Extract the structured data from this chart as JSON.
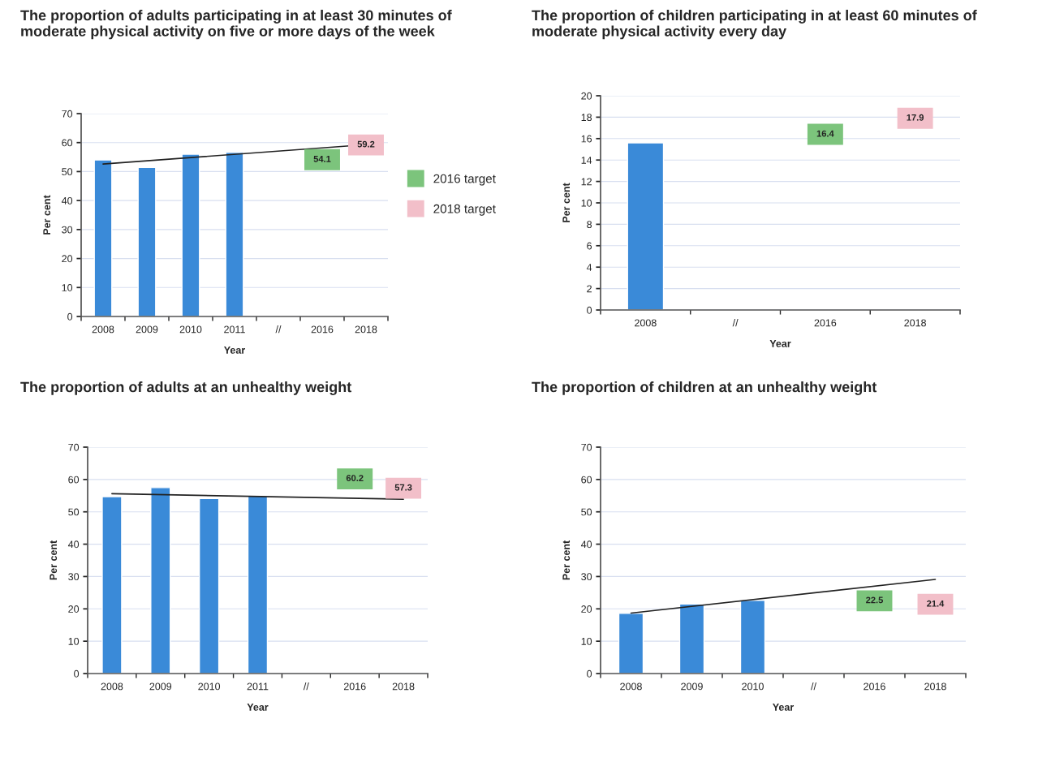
{
  "chart_data": [
    {
      "type": "bar",
      "title": "The proportion of adults participating in at least 30 minutes of moderate physical activity on five or more days of the week",
      "xlabel": "Year",
      "ylabel": "Per cent",
      "categories": [
        "2008",
        "2009",
        "2010",
        "2011",
        "//",
        "2016",
        "2018"
      ],
      "ylim": [
        0,
        70
      ],
      "yticks": [
        0,
        10,
        20,
        30,
        40,
        50,
        60,
        70
      ],
      "grid": "y",
      "legend": "right",
      "series": [
        {
          "color": "#3a8ad8",
          "values": [
            54.0,
            51.4,
            56.0,
            56.6,
            null,
            null,
            null
          ]
        },
        {
          "type": "line",
          "color": "#222222",
          "values": [
            52.6,
            null,
            null,
            null,
            null,
            null,
            59.3
          ]
        },
        {
          "type": "scatter",
          "name": "2016 target",
          "marker": "square",
          "color": "#7cc47c",
          "values": [
            null,
            null,
            null,
            null,
            null,
            54.1,
            null
          ],
          "value_labels": [
            null,
            null,
            null,
            null,
            null,
            "54.1",
            null
          ]
        },
        {
          "type": "scatter",
          "name": "2018 target",
          "marker": "square",
          "color": "#f2bfc9",
          "values": [
            null,
            null,
            null,
            null,
            null,
            null,
            59.2
          ],
          "value_labels": [
            null,
            null,
            null,
            null,
            null,
            null,
            "59.2"
          ]
        }
      ]
    },
    {
      "type": "bar",
      "title": "The proportion of children participating in at least 60 minutes of moderate physical activity every day",
      "xlabel": "Year",
      "ylabel": "Per cent",
      "categories": [
        "2008",
        "//",
        "2016",
        "2018"
      ],
      "ylim": [
        0,
        20
      ],
      "yticks": [
        0,
        2,
        4,
        6,
        8,
        10,
        12,
        14,
        16,
        18,
        20
      ],
      "grid": "y",
      "series": [
        {
          "color": "#3a8ad8",
          "values": [
            15.6,
            null,
            null,
            null
          ]
        },
        {
          "type": "scatter",
          "marker": "square",
          "color": "#7cc47c",
          "values": [
            null,
            null,
            16.4,
            null
          ],
          "value_labels": [
            null,
            null,
            "16.4",
            null
          ]
        },
        {
          "type": "scatter",
          "marker": "square",
          "color": "#f2bfc9",
          "values": [
            null,
            null,
            null,
            17.9
          ],
          "value_labels": [
            null,
            null,
            null,
            "17.9"
          ]
        }
      ]
    },
    {
      "type": "bar",
      "title": "The proportion of adults at an unhealthy weight",
      "xlabel": "Year",
      "ylabel": "Per cent",
      "categories": [
        "2008",
        "2009",
        "2010",
        "2011",
        "//",
        "2016",
        "2018"
      ],
      "ylim": [
        0,
        70
      ],
      "yticks": [
        0,
        10,
        20,
        30,
        40,
        50,
        60,
        70
      ],
      "grid": "y",
      "series": [
        {
          "color": "#3a8ad8",
          "values": [
            54.7,
            57.5,
            54.1,
            54.9,
            null,
            null,
            null
          ]
        },
        {
          "type": "line",
          "color": "#222222",
          "values": [
            55.6,
            null,
            null,
            null,
            null,
            null,
            53.9
          ]
        },
        {
          "type": "scatter",
          "marker": "square",
          "color": "#7cc47c",
          "values": [
            null,
            null,
            null,
            null,
            null,
            60.2,
            null
          ],
          "value_labels": [
            null,
            null,
            null,
            null,
            null,
            "60.2",
            null
          ]
        },
        {
          "type": "scatter",
          "marker": "square",
          "color": "#f2bfc9",
          "values": [
            null,
            null,
            null,
            null,
            null,
            null,
            57.3
          ],
          "value_labels": [
            null,
            null,
            null,
            null,
            null,
            null,
            "57.3"
          ]
        }
      ]
    },
    {
      "type": "bar",
      "title": "The proportion of children at an unhealthy weight",
      "xlabel": "Year",
      "ylabel": "Per cent",
      "categories": [
        "2008",
        "2009",
        "2010",
        "//",
        "2016",
        "2018"
      ],
      "ylim": [
        0,
        70
      ],
      "yticks": [
        0,
        10,
        20,
        30,
        40,
        50,
        60,
        70
      ],
      "grid": "y",
      "series": [
        {
          "color": "#3a8ad8",
          "values": [
            18.6,
            21.5,
            22.6,
            null,
            null,
            null
          ]
        },
        {
          "type": "line",
          "color": "#222222",
          "values": [
            18.7,
            null,
            null,
            null,
            null,
            29.1
          ]
        },
        {
          "type": "scatter",
          "marker": "square",
          "color": "#7cc47c",
          "values": [
            null,
            null,
            null,
            null,
            22.5,
            null
          ],
          "value_labels": [
            null,
            null,
            null,
            null,
            "22.5",
            null
          ]
        },
        {
          "type": "scatter",
          "marker": "square",
          "color": "#f2bfc9",
          "values": [
            null,
            null,
            null,
            null,
            null,
            21.4
          ],
          "value_labels": [
            null,
            null,
            null,
            null,
            null,
            "21.4"
          ]
        }
      ]
    }
  ]
}
